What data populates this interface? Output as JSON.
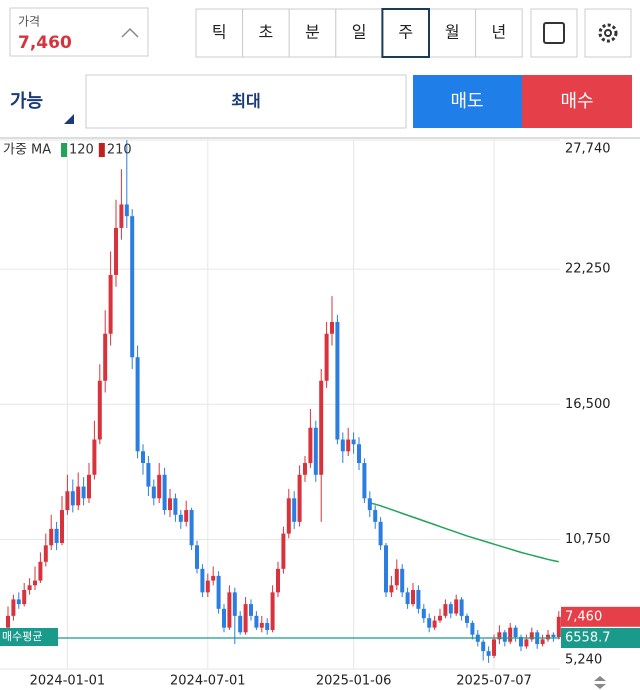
{
  "header": {
    "price_label": "가격",
    "price": "7,460",
    "periods": [
      "틱",
      "초",
      "분",
      "일",
      "주",
      "월",
      "년"
    ],
    "selected_period": 4
  },
  "order": {
    "available": "가능",
    "quantity": "최대",
    "sell": "매도",
    "buy": "매수"
  },
  "chart_data": {
    "type": "candlestick",
    "legend_title": "가중 MA",
    "up_color": "#d8333d",
    "down_color": "#2a7de1",
    "ylim": [
      5240,
      27740
    ],
    "yticks": [
      {
        "value": 27740,
        "label": "27,740"
      },
      {
        "value": 22250,
        "label": "22,250"
      },
      {
        "value": 16500,
        "label": "16,500"
      },
      {
        "value": 10750,
        "label": "10,750"
      },
      {
        "value": 5240,
        "label": "5,240"
      }
    ],
    "xticks": [
      {
        "value": 11,
        "label": "2024-01-01"
      },
      {
        "value": 37,
        "label": "2024-07-01"
      },
      {
        "value": 64,
        "label": "2025-01-06"
      },
      {
        "value": 90,
        "label": "2025-07-07"
      }
    ],
    "current_price": {
      "value": 7460,
      "label": "7,460"
    },
    "average_price": {
      "name": "매수평균",
      "value": 6558.7
    },
    "series": [
      {
        "name": "120",
        "color": "#22a35a",
        "values": [
          null,
          null,
          null,
          null,
          null,
          null,
          null,
          null,
          null,
          null,
          null,
          null,
          null,
          null,
          null,
          null,
          null,
          null,
          null,
          null,
          null,
          null,
          null,
          null,
          null,
          null,
          null,
          null,
          null,
          null,
          null,
          null,
          null,
          null,
          null,
          null,
          null,
          null,
          null,
          null,
          null,
          null,
          null,
          null,
          null,
          null,
          null,
          null,
          null,
          null,
          null,
          null,
          null,
          null,
          null,
          null,
          null,
          null,
          null,
          null,
          null,
          null,
          null,
          null,
          null,
          null,
          null,
          12300,
          12250,
          12180,
          12100,
          12020,
          11940,
          11860,
          11780,
          11700,
          11620,
          11540,
          11460,
          11380,
          11300,
          11220,
          11140,
          11060,
          10980,
          10900,
          10830,
          10760,
          10690,
          10620,
          10550,
          10480,
          10410,
          10340,
          10270,
          10200,
          10140,
          10080,
          10020,
          9960,
          9900,
          9850,
          9800
        ]
      },
      {
        "name": "210",
        "color": "#c0231f"
      }
    ],
    "ohlc": [
      [
        7000,
        7900,
        6900,
        7500
      ],
      [
        7500,
        8400,
        7300,
        8200
      ],
      [
        8200,
        8500,
        7800,
        8000
      ],
      [
        8000,
        8900,
        7900,
        8600
      ],
      [
        8600,
        9100,
        8400,
        8800
      ],
      [
        8800,
        9600,
        8600,
        9000
      ],
      [
        9000,
        10200,
        8900,
        9800
      ],
      [
        9800,
        11000,
        9600,
        10500
      ],
      [
        10500,
        11800,
        10300,
        11200
      ],
      [
        11200,
        11500,
        10300,
        10600
      ],
      [
        10600,
        12600,
        10500,
        12000
      ],
      [
        12000,
        13500,
        11800,
        12800
      ],
      [
        12800,
        13300,
        11900,
        12200
      ],
      [
        12200,
        13600,
        12000,
        13000
      ],
      [
        13000,
        13400,
        12200,
        12500
      ],
      [
        12500,
        14000,
        12300,
        13500
      ],
      [
        13500,
        15800,
        13300,
        15000
      ],
      [
        15000,
        18200,
        14800,
        17500
      ],
      [
        17500,
        20500,
        17000,
        19500
      ],
      [
        19500,
        23000,
        19000,
        22000
      ],
      [
        22000,
        25200,
        21500,
        24000
      ],
      [
        24000,
        26500,
        23500,
        25000
      ],
      [
        25000,
        27740,
        24000,
        24500
      ],
      [
        24500,
        24800,
        18000,
        18500
      ],
      [
        18500,
        19000,
        14200,
        14500
      ],
      [
        14500,
        14800,
        13500,
        14000
      ],
      [
        14000,
        14300,
        12600,
        13000
      ],
      [
        13000,
        13300,
        12200,
        12500
      ],
      [
        12500,
        14000,
        12300,
        13500
      ],
      [
        13500,
        13800,
        11800,
        12000
      ],
      [
        12000,
        12900,
        11700,
        12500
      ],
      [
        12500,
        12700,
        11500,
        11800
      ],
      [
        11800,
        12000,
        11200,
        11500
      ],
      [
        11500,
        12400,
        11300,
        12000
      ],
      [
        12000,
        12100,
        10300,
        10500
      ],
      [
        10500,
        10700,
        9300,
        9500
      ],
      [
        9500,
        9700,
        8300,
        8500
      ],
      [
        8500,
        9300,
        8300,
        9000
      ],
      [
        9000,
        9600,
        8800,
        9200
      ],
      [
        9200,
        9400,
        7600,
        7800
      ],
      [
        7800,
        8000,
        6800,
        7000
      ],
      [
        7000,
        8800,
        6900,
        8500
      ],
      [
        8500,
        8700,
        6300,
        7500
      ],
      [
        7500,
        7700,
        6700,
        6800
      ],
      [
        6800,
        8300,
        6700,
        8000
      ],
      [
        8000,
        8200,
        7300,
        7500
      ],
      [
        7500,
        7700,
        6900,
        7000
      ],
      [
        7000,
        7500,
        6800,
        7200
      ],
      [
        7200,
        7400,
        6700,
        6900
      ],
      [
        6900,
        8800,
        6800,
        8500
      ],
      [
        8500,
        9800,
        8300,
        9500
      ],
      [
        9500,
        11300,
        9300,
        11000
      ],
      [
        11000,
        12900,
        10800,
        12500
      ],
      [
        12500,
        12800,
        11200,
        11500
      ],
      [
        11500,
        13900,
        11300,
        13500
      ],
      [
        13500,
        14300,
        13200,
        14000
      ],
      [
        14000,
        16300,
        13800,
        15500
      ],
      [
        15500,
        15800,
        13200,
        13500
      ],
      [
        13500,
        18000,
        11500,
        17500
      ],
      [
        17500,
        20000,
        17200,
        19500
      ],
      [
        19500,
        21100,
        19000,
        20000
      ],
      [
        20000,
        20300,
        14800,
        15000
      ],
      [
        15000,
        15300,
        14000,
        14500
      ],
      [
        14500,
        15500,
        14300,
        15000
      ],
      [
        15000,
        15300,
        14400,
        14800
      ],
      [
        14800,
        15100,
        13700,
        14000
      ],
      [
        14000,
        14200,
        12300,
        12500
      ],
      [
        12500,
        12800,
        11700,
        12000
      ],
      [
        12000,
        12200,
        11200,
        11500
      ],
      [
        11500,
        11700,
        10300,
        10500
      ],
      [
        10500,
        10600,
        8300,
        8500
      ],
      [
        8500,
        9200,
        8300,
        8800
      ],
      [
        8800,
        9900,
        8600,
        9500
      ],
      [
        9500,
        9700,
        8300,
        8500
      ],
      [
        8500,
        8700,
        7800,
        8000
      ],
      [
        8000,
        8900,
        7900,
        8600
      ],
      [
        8600,
        8800,
        7600,
        7800
      ],
      [
        7800,
        8000,
        7200,
        7400
      ],
      [
        7400,
        7600,
        6800,
        7000
      ],
      [
        7000,
        7500,
        6900,
        7300
      ],
      [
        7300,
        7800,
        7200,
        7500
      ],
      [
        7500,
        8200,
        7400,
        8000
      ],
      [
        8000,
        8100,
        7400,
        7600
      ],
      [
        7600,
        8400,
        7500,
        8200
      ],
      [
        8200,
        8300,
        7300,
        7500
      ],
      [
        7500,
        7600,
        7000,
        7200
      ],
      [
        7200,
        7300,
        6500,
        6700
      ],
      [
        6700,
        6900,
        6200,
        6400
      ],
      [
        6400,
        6500,
        5600,
        6000
      ],
      [
        6000,
        6200,
        5500,
        5800
      ],
      [
        5800,
        6700,
        5700,
        6500
      ],
      [
        6500,
        7100,
        6300,
        6800
      ],
      [
        6800,
        6900,
        6200,
        6400
      ],
      [
        6400,
        7200,
        6300,
        7000
      ],
      [
        7000,
        7100,
        6400,
        6600
      ],
      [
        6600,
        6700,
        6000,
        6200
      ],
      [
        6200,
        6700,
        6100,
        6500
      ],
      [
        6500,
        7000,
        6400,
        6800
      ],
      [
        6800,
        6900,
        6100,
        6300
      ],
      [
        6300,
        6700,
        6200,
        6500
      ],
      [
        6500,
        6900,
        6400,
        6700
      ],
      [
        6700,
        6800,
        6400,
        6600
      ],
      [
        6600,
        7700,
        6500,
        7460
      ]
    ]
  }
}
